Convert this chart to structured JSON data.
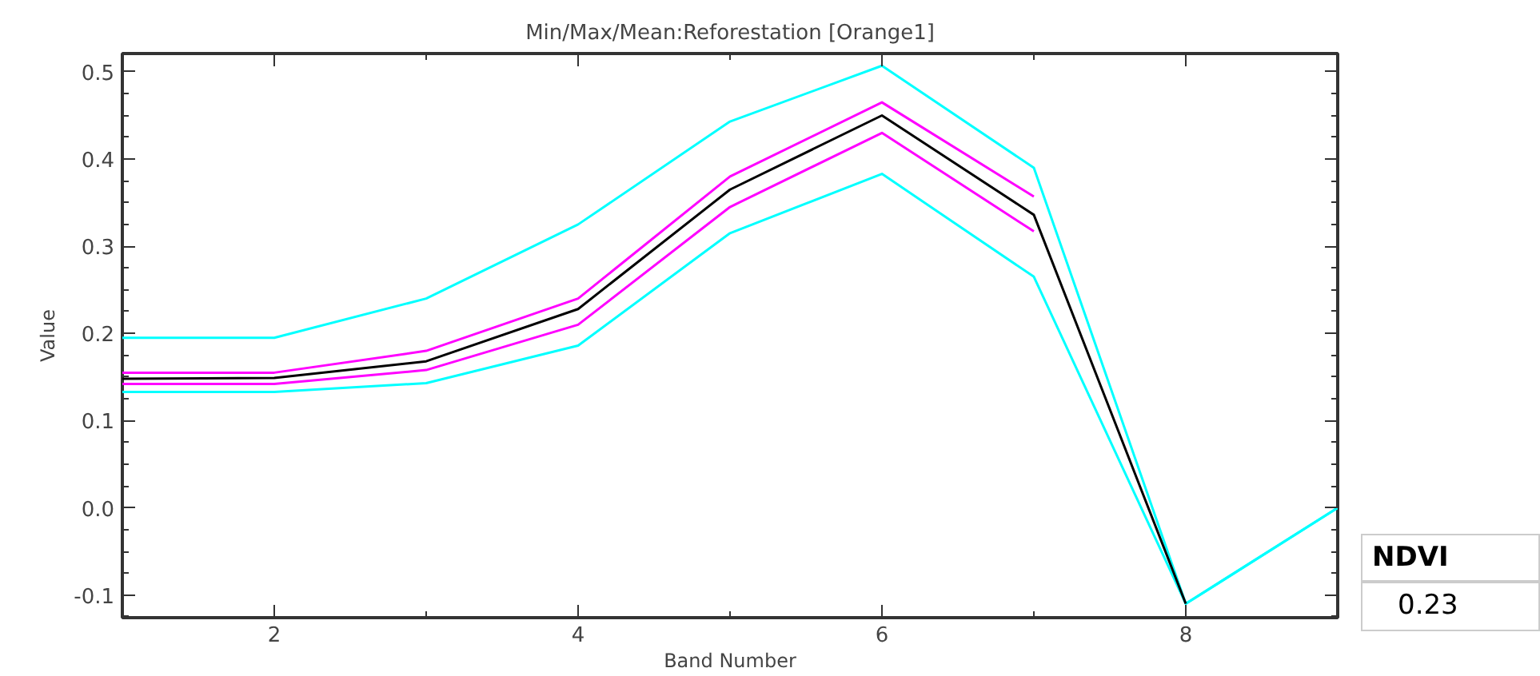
{
  "chart_data": {
    "type": "line",
    "title": "Min/Max/Mean:Reforestation [Orange1]",
    "xlabel": "Band Number",
    "ylabel": "Value",
    "x": [
      1,
      2,
      3,
      4,
      5,
      6,
      7,
      8,
      9
    ],
    "series": [
      {
        "color": "#00ffff",
        "values": [
          0.195,
          0.195,
          0.24,
          0.325,
          0.443,
          0.507,
          0.39,
          -0.11,
          0.0
        ]
      },
      {
        "color": "#00ffff",
        "values": [
          0.133,
          0.133,
          0.143,
          0.186,
          0.315,
          0.383,
          0.265,
          -0.11,
          0.0
        ]
      },
      {
        "color": "#ff00ff",
        "values": [
          0.155,
          0.155,
          0.18,
          0.24,
          0.38,
          0.465,
          0.357,
          null,
          null
        ]
      },
      {
        "color": "#ff00ff",
        "values": [
          0.142,
          0.142,
          0.158,
          0.21,
          0.345,
          0.43,
          0.317,
          null,
          null
        ]
      },
      {
        "color": "#000000",
        "values": [
          0.148,
          0.149,
          0.168,
          0.228,
          0.365,
          0.45,
          0.336,
          -0.11,
          null
        ]
      }
    ],
    "xlim": [
      1,
      9
    ],
    "ylim": [
      -0.126,
      0.521
    ],
    "xticks": [
      2,
      4,
      6,
      8
    ],
    "yticks": [
      {
        "value": -0.1,
        "label": "-0.1"
      },
      {
        "value": 0.0,
        "label": "0.0"
      },
      0.1,
      0.2,
      0.3,
      0.4,
      0.5
    ],
    "grid": false,
    "marker": "none",
    "line_style": "solid",
    "annotations": [
      "NDVI",
      "0.23"
    ]
  }
}
